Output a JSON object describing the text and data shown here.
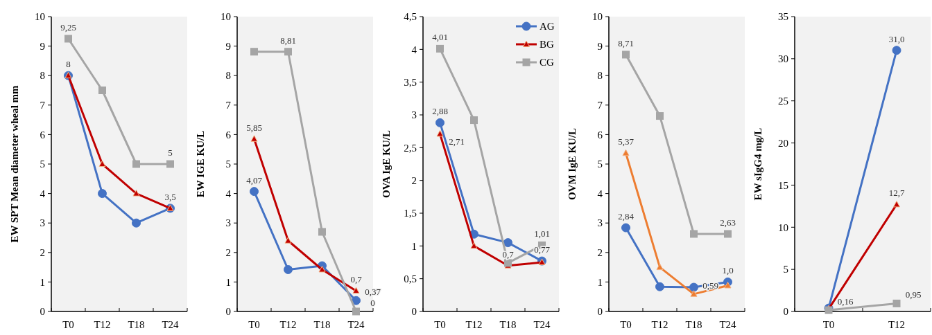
{
  "chart_data": [
    {
      "type": "line",
      "ylabel": "EW SPT Mean diameter wheal mm",
      "categories": [
        "T0",
        "T12",
        "T18",
        "T24"
      ],
      "ylim": [
        0,
        10
      ],
      "yticks": [
        0,
        1,
        2,
        3,
        4,
        5,
        6,
        7,
        8,
        9,
        10
      ],
      "grid": false,
      "legend": false,
      "series": [
        {
          "color": "#4472c4",
          "marker": "circle",
          "values": [
            8,
            4,
            3,
            3.5
          ],
          "value_labels": [
            "8",
            null,
            null,
            null
          ]
        },
        {
          "color": "#c00000",
          "marker": "triangle",
          "values": [
            8,
            5,
            4,
            3.5
          ],
          "value_labels": [
            null,
            null,
            null,
            "3,5"
          ]
        },
        {
          "color": "#a5a5a5",
          "marker": "square",
          "values": [
            9.25,
            7.5,
            5,
            5
          ],
          "value_labels": [
            "9,25",
            null,
            null,
            "5"
          ]
        }
      ]
    },
    {
      "type": "line",
      "ylabel": "EW IGE KU/L",
      "categories": [
        "T0",
        "T12",
        "T18",
        "T24"
      ],
      "ylim": [
        0,
        10
      ],
      "yticks": [
        0,
        1,
        2,
        3,
        4,
        5,
        6,
        7,
        8,
        9,
        10
      ],
      "grid": false,
      "legend": false,
      "series": [
        {
          "color": "#4472c4",
          "marker": "circle",
          "values": [
            4.07,
            1.42,
            1.55,
            0.37
          ],
          "value_labels": [
            "4,07",
            null,
            null,
            "0,37"
          ]
        },
        {
          "color": "#c00000",
          "marker": "triangle",
          "values": [
            5.85,
            2.4,
            1.42,
            0.7
          ],
          "value_labels": [
            "5,85",
            null,
            null,
            "0,7"
          ]
        },
        {
          "color": "#a5a5a5",
          "marker": "square",
          "values": [
            8.81,
            8.81,
            2.7,
            0
          ],
          "value_labels": [
            null,
            "8,81",
            null,
            "0"
          ]
        }
      ]
    },
    {
      "type": "line",
      "ylabel": "OVA IgE KU/L",
      "categories": [
        "T0",
        "T12",
        "T18",
        "T24"
      ],
      "ylim": [
        0,
        4.5
      ],
      "yticks": [
        0,
        {
          "value": 0.5,
          "label": "0,5"
        },
        1,
        {
          "value": 1.5,
          "label": "1,5"
        },
        2,
        {
          "value": 2.5,
          "label": "2,5"
        },
        3,
        {
          "value": 3.5,
          "label": "3,5"
        },
        4,
        {
          "value": 4.5,
          "label": "4,5"
        }
      ],
      "grid": false,
      "legend": "top right",
      "series": [
        {
          "name": "AG",
          "color": "#4472c4",
          "marker": "circle",
          "values": [
            2.88,
            1.18,
            1.05,
            0.77
          ],
          "value_labels": [
            "2,88",
            null,
            null,
            "0,77"
          ]
        },
        {
          "name": "BG",
          "color": "#c00000",
          "marker": "triangle",
          "values": [
            2.71,
            1.0,
            0.7,
            0.75
          ],
          "value_labels": [
            "2,71",
            null,
            "0,7",
            null
          ]
        },
        {
          "name": "CG",
          "color": "#a5a5a5",
          "marker": "square",
          "values": [
            4.01,
            2.92,
            0.74,
            1.01
          ],
          "value_labels": [
            "4,01",
            null,
            null,
            "1,01"
          ]
        }
      ]
    },
    {
      "type": "line",
      "ylabel": "OVM IgE KU/L",
      "categories": [
        "T0",
        "T12",
        "T18",
        "T24"
      ],
      "ylim": [
        0,
        10
      ],
      "yticks": [
        0,
        1,
        2,
        3,
        4,
        5,
        6,
        7,
        8,
        9,
        10
      ],
      "grid": false,
      "legend": false,
      "series": [
        {
          "color": "#4472c4",
          "marker": "circle",
          "values": [
            2.84,
            0.84,
            0.82,
            1.0
          ],
          "value_labels": [
            "2,84",
            null,
            null,
            "1,0"
          ]
        },
        {
          "color": "#ed7d31",
          "marker": "triangle",
          "values": [
            5.37,
            1.5,
            0.59,
            0.88
          ],
          "value_labels": [
            "5,37",
            null,
            "0,59",
            null
          ]
        },
        {
          "color": "#a5a5a5",
          "marker": "square",
          "values": [
            8.71,
            6.63,
            2.63,
            2.63
          ],
          "value_labels": [
            "8,71",
            null,
            null,
            "2,63"
          ]
        }
      ]
    },
    {
      "type": "line",
      "ylabel": "EW sIgG4 mg/L",
      "categories": [
        "T0",
        "T12"
      ],
      "ylim": [
        0,
        35
      ],
      "yticks": [
        0,
        5,
        10,
        15,
        20,
        25,
        30,
        35
      ],
      "grid": false,
      "legend": false,
      "series": [
        {
          "color": "#4472c4",
          "marker": "circle",
          "values": [
            0.4,
            31.0
          ],
          "value_labels": [
            null,
            "31,0"
          ]
        },
        {
          "color": "#c00000",
          "marker": "triangle",
          "values": [
            0.3,
            12.7
          ],
          "value_labels": [
            null,
            "12,7"
          ]
        },
        {
          "color": "#a5a5a5",
          "marker": "square",
          "values": [
            0.16,
            0.95
          ],
          "value_labels": [
            "0,16",
            "0,95"
          ]
        }
      ]
    }
  ]
}
